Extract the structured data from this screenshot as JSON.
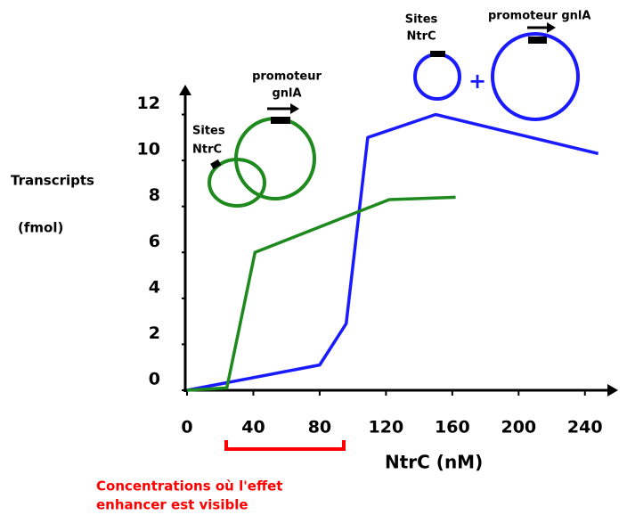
{
  "chart_data": {
    "type": "line",
    "y_label": [
      "Transcripts",
      "(fmol)"
    ],
    "x_label": "NtrC (nM)",
    "series": [
      {
        "color": "#1a1aff",
        "x": [
          0,
          80,
          96,
          109,
          150,
          248
        ],
        "values": [
          0,
          1.1,
          2.9,
          11,
          12,
          10.3
        ]
      },
      {
        "color": "#1e8a1e",
        "x": [
          0,
          24,
          41,
          122,
          162
        ],
        "values": [
          0,
          0.1,
          6,
          8.3,
          8.4
        ]
      }
    ],
    "xlim": [
      0,
      260
    ],
    "ylim": [
      0,
      13.3
    ],
    "xticks": [
      0,
      40,
      80,
      120,
      160,
      200,
      240
    ],
    "yticks": [
      0,
      2,
      4,
      6,
      8,
      10,
      12
    ],
    "grid": false,
    "annotations": {
      "green_sites": [
        "Sites",
        "NtrC"
      ],
      "green_promoter": [
        "promoteur",
        "gnlA"
      ],
      "blue_sites": [
        "Sites",
        "NtrC"
      ],
      "blue_promoter": "promoteur gnlA",
      "plus": "+",
      "range_note": [
        "Concentrations où l'effet",
        "enhancer est visible"
      ]
    }
  }
}
